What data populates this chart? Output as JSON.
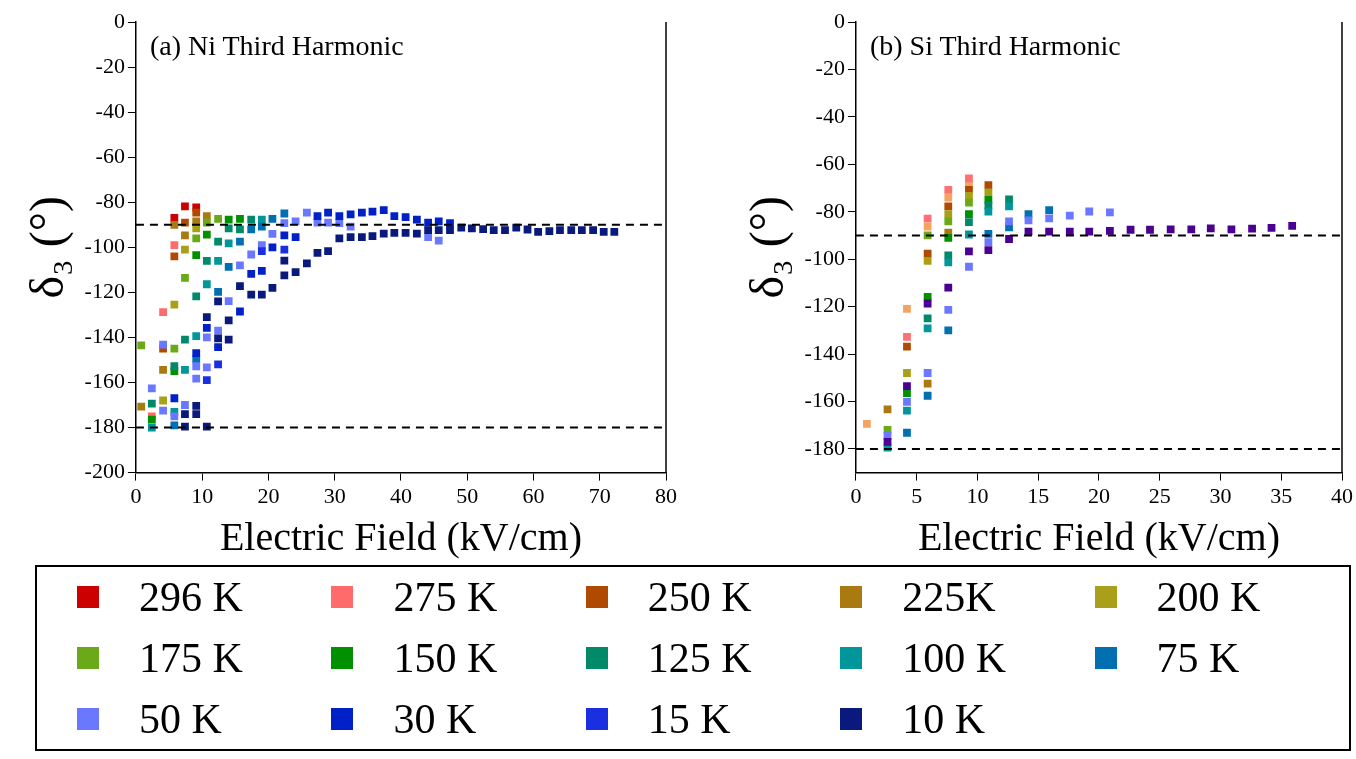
{
  "chart_data": [
    {
      "type": "scatter",
      "annotations": [
        "(a) Ni Third Harmonic"
      ],
      "xlabel": "Electric Field (kV/cm)",
      "ylabel": "δ₃ (°)",
      "xlim": [
        0,
        80
      ],
      "xticks": [
        0,
        10,
        20,
        30,
        40,
        50,
        60,
        70,
        80
      ],
      "ylim": [
        -200,
        0
      ],
      "yticks": [
        -200,
        -180,
        -160,
        -140,
        -120,
        -100,
        -80,
        -60,
        -40,
        -20,
        0
      ],
      "marker": "square",
      "legend": "bottom",
      "ref_lines": [
        {
          "axis": "y",
          "value": -90,
          "line_style": "dashed",
          "color": "#000000"
        },
        {
          "axis": "y",
          "value": -180,
          "line_style": "dashed",
          "color": "#000000"
        }
      ],
      "series": [
        {
          "name": "296 K",
          "color": "#cc0000",
          "x": [
            5.8,
            7.4,
            9.1
          ],
          "values": [
            -87,
            -81.8,
            -82.3
          ]
        },
        {
          "name": "275 K",
          "color": "#ff6b6b",
          "x": [
            2.4,
            4.1,
            5.8
          ],
          "values": [
            -175,
            -128.8,
            -99
          ]
        },
        {
          "name": "250 K",
          "color": "#b04a00",
          "x": [
            4.1,
            5.8,
            7.4,
            9.1
          ],
          "values": [
            -145,
            -104,
            -89,
            -84.6
          ]
        },
        {
          "name": "225K",
          "color": "#a87a10",
          "x": [
            0.8,
            4.1,
            5.8,
            7.4,
            9.1,
            10.7
          ],
          "values": [
            -170.7,
            -154.4,
            -90,
            -94.7,
            -88.5,
            -86.2
          ]
        },
        {
          "name": "200 K",
          "color": "#a8a018",
          "x": [
            4.1,
            5.8,
            7.4,
            9.1
          ],
          "values": [
            -168,
            -125.4,
            -101,
            -91.6
          ]
        },
        {
          "name": "175 K",
          "color": "#6aaa18",
          "x": [
            0.8,
            5.8,
            7.4,
            9.1,
            10.7,
            12.4
          ],
          "values": [
            -143.5,
            -145,
            -113.6,
            -96,
            -89,
            -87.4
          ]
        },
        {
          "name": "150 K",
          "color": "#009000",
          "x": [
            2.4,
            5.8,
            9.1,
            10.7,
            14.0,
            15.7
          ],
          "values": [
            -176.5,
            -155,
            -103.5,
            -94.4,
            -87.7,
            -87.4
          ]
        },
        {
          "name": "125 K",
          "color": "#008a6a",
          "x": [
            2.4,
            5.8,
            7.4,
            9.1,
            10.7,
            12.4,
            14.0,
            15.7,
            17.4
          ],
          "values": [
            -169.4,
            -152.8,
            -141,
            -121.8,
            -106,
            -97.5,
            -91.6,
            -92,
            -87.7
          ]
        },
        {
          "name": "100 K",
          "color": "#00969a",
          "x": [
            2.4,
            5.8,
            7.4,
            9.1,
            10.7,
            12.4,
            14.0,
            19.0
          ],
          "values": [
            -180,
            -173,
            -154.4,
            -139.4,
            -116.4,
            -106,
            -98.3,
            -87.7
          ]
        },
        {
          "name": "75 K",
          "color": "#0070b0",
          "x": [
            5.8,
            9.1,
            12.4,
            14.0,
            15.7,
            17.4,
            19.0,
            20.6,
            22.4
          ],
          "values": [
            -179,
            -149.7,
            -119.8,
            -108.7,
            -97.5,
            -92,
            -90.8,
            -87.4,
            -85
          ]
        },
        {
          "name": "50 K",
          "color": "#6a78ff",
          "x": [
            2.4,
            4.1,
            4.1,
            5.8,
            7.4,
            9.1,
            9.1,
            10.7,
            10.7,
            12.4,
            14.0,
            15.7,
            17.4,
            19.0,
            20.6,
            22.4,
            24.1,
            25.8,
            27.4,
            29.0,
            30.7,
            32.4,
            44.1,
            45.7
          ],
          "values": [
            -162.6,
            -143.2,
            -172.5,
            -175,
            -170,
            -152.8,
            -158.3,
            -140,
            -153.3,
            -137,
            -123.9,
            -108,
            -103.2,
            -99,
            -94,
            -89.3,
            -88.5,
            -84.6,
            -89,
            -89,
            -89.3,
            -90.8,
            -95.5,
            -97
          ]
        },
        {
          "name": "30 K",
          "color": "#0020c8",
          "x": [
            5.8,
            9.1,
            10.7,
            12.4,
            15.7,
            17.4,
            19.0,
            20.6,
            22.4,
            24.1,
            27.4,
            29.0,
            30.7,
            32.4,
            34.1,
            35.7,
            37.4,
            39.0,
            40.7,
            42.4,
            44.1,
            45.7,
            47.4
          ],
          "values": [
            -167,
            -147,
            -135.8,
            -144.3,
            -128.5,
            -111.8,
            -110.5,
            -100,
            -94.7,
            -95.5,
            -86.2,
            -84.6,
            -86.2,
            -85.4,
            -84.6,
            -84.2,
            -83.5,
            -86.2,
            -86.6,
            -87.7,
            -89,
            -88.5,
            -89.3
          ]
        },
        {
          "name": "15 K",
          "color": "#1a30e0",
          "x": [
            10.7,
            12.4,
            19.0,
            22.4
          ],
          "values": [
            -159,
            -152,
            -101.7,
            -101
          ]
        },
        {
          "name": "10 K",
          "color": "#0a1a7c",
          "x": [
            7.4,
            7.4,
            9.1,
            9.1,
            10.7,
            10.7,
            12.4,
            12.4,
            14.0,
            14.0,
            15.7,
            17.4,
            19.0,
            20.6,
            22.4,
            22.4,
            24.1,
            25.8,
            27.4,
            29.0,
            30.7,
            32.4,
            34.1,
            35.7,
            37.4,
            39.0,
            40.7,
            42.4,
            44.1,
            45.7,
            47.4,
            49.1,
            50.7,
            52.4,
            54.0,
            55.7,
            57.4,
            59.1,
            60.7,
            62.4,
            64.0,
            65.7,
            67.3,
            69.0,
            70.6,
            72.2
          ],
          "values": [
            -174,
            -179.6,
            -170.4,
            -174,
            -131,
            -179.6,
            -124,
            -140.4,
            -132.4,
            -141,
            -117.2,
            -121,
            -121,
            -118,
            -112.5,
            -105.9,
            -111,
            -107.1,
            -102.5,
            -101.7,
            -96,
            -95.5,
            -95.5,
            -95,
            -93.9,
            -93.6,
            -93.6,
            -93.9,
            -92.4,
            -92.4,
            -92.4,
            -91.3,
            -91.6,
            -91.9,
            -92.4,
            -92.4,
            -91.3,
            -92.1,
            -93.2,
            -92.8,
            -92.4,
            -92.4,
            -92.4,
            -92.4,
            -93.2,
            -93.2
          ]
        }
      ]
    },
    {
      "type": "scatter",
      "annotations": [
        "(b) Si Third Harmonic"
      ],
      "xlabel": "Electric Field (kV/cm)",
      "ylabel": "δ₃ (°)",
      "xlim": [
        0,
        40
      ],
      "xticks": [
        0,
        5,
        10,
        15,
        20,
        25,
        30,
        35,
        40
      ],
      "ylim": [
        -190,
        0
      ],
      "yticks": [
        -180,
        -160,
        -140,
        -120,
        -100,
        -80,
        -60,
        -40,
        -20,
        0
      ],
      "marker": "square",
      "ref_lines": [
        {
          "axis": "y",
          "value": -90,
          "line_style": "dashed",
          "color": "#000000"
        },
        {
          "axis": "y",
          "value": -180,
          "line_style": "dashed",
          "color": "#000000"
        }
      ],
      "series": [
        {
          "color": "#f4a460",
          "x": [
            0.9,
            4.2,
            5.9,
            7.6,
            9.3
          ],
          "values": [
            -169.5,
            -121,
            -86.3,
            -74,
            -68.8
          ]
        },
        {
          "color": "#ff7070",
          "x": [
            4.2,
            5.9,
            7.6,
            9.3
          ],
          "values": [
            -132.8,
            -82.9,
            -70.8,
            -65.9
          ]
        },
        {
          "color": "#b04a00",
          "x": [
            4.2,
            5.9,
            7.6,
            9.3,
            10.9
          ],
          "values": [
            -136.9,
            -97.7,
            -77.7,
            -70.8,
            -68.8
          ]
        },
        {
          "color": "#a87a10",
          "x": [
            2.6,
            5.9,
            7.6
          ],
          "values": [
            -163.3,
            -152.5,
            -88.8
          ]
        },
        {
          "color": "#a8a018",
          "x": [
            4.2,
            5.9,
            7.6,
            9.3,
            10.9
          ],
          "values": [
            -148,
            -100.7,
            -81,
            -73.3,
            -71.8
          ]
        },
        {
          "color": "#6aaa18",
          "x": [
            2.6,
            5.9,
            7.6,
            9.3
          ],
          "values": [
            -172,
            -90,
            -84.1,
            -76.2
          ]
        },
        {
          "color": "#009000",
          "x": [
            4.2,
            5.9,
            7.6,
            9.3,
            10.9
          ],
          "values": [
            -156.5,
            -115.9,
            -91,
            -81,
            -75
          ]
        },
        {
          "color": "#008a6a",
          "x": [
            5.9,
            7.6,
            9.3,
            10.9,
            12.6
          ],
          "values": [
            -125,
            -98.4,
            -84.4,
            -77.4,
            -74.8
          ]
        },
        {
          "color": "#00969a",
          "x": [
            2.6,
            4.2,
            5.9,
            7.6,
            9.3,
            10.9,
            12.6
          ],
          "values": [
            -179.5,
            -163.9,
            -129.2,
            -101.4,
            -89.6,
            -80,
            -77.7
          ]
        },
        {
          "color": "#0070b0",
          "x": [
            4.2,
            5.9,
            7.6,
            10.9,
            12.6,
            14.2,
            15.9
          ],
          "values": [
            -173.2,
            -157.6,
            -130,
            -89.3,
            -86.6,
            -81,
            -79.3
          ]
        },
        {
          "color": "#6a78ff",
          "x": [
            2.6,
            4.2,
            5.9,
            7.6,
            9.3,
            10.9,
            12.6,
            14.2,
            15.9,
            17.6,
            19.2,
            20.9
          ],
          "values": [
            -174.5,
            -160.2,
            -148,
            -121.4,
            -103.2,
            -92.8,
            -84.1,
            -83.6,
            -82.8,
            -81.6,
            -79.9,
            -80.3
          ]
        },
        {
          "color": "#4a0090",
          "x": [
            2.6,
            4.2,
            5.9,
            7.6,
            9.3,
            10.9,
            12.6,
            14.2,
            15.9,
            17.6,
            19.2,
            20.9,
            22.6,
            24.2,
            25.9,
            27.6,
            29.2,
            30.9,
            32.6,
            34.2,
            35.9
          ],
          "values": [
            -177,
            -153.5,
            -118.7,
            -112,
            -96.7,
            -96.2,
            -91.5,
            -88.4,
            -88.4,
            -88.4,
            -88.4,
            -88.1,
            -87.6,
            -87.6,
            -87.4,
            -87.4,
            -87,
            -87.4,
            -87.1,
            -86.8,
            -86
          ]
        }
      ]
    }
  ]
}
